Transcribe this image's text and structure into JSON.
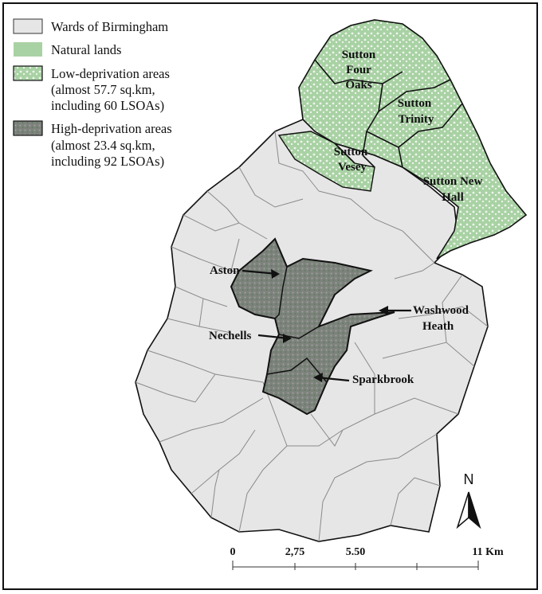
{
  "legend": {
    "wards": "Wards of Birmingham",
    "natural": "Natural lands",
    "low_line1": "Low-deprivation areas",
    "low_line2": "(almost 57.7 sq.km,",
    "low_line3": "including 60 LSOAs)",
    "high_line1": "High-deprivation areas",
    "high_line2": "(almost 23.4 sq.km,",
    "high_line3": "including 92 LSOAs)"
  },
  "labels": {
    "sutton_four_oaks_1": "Sutton",
    "sutton_four_oaks_2": "Four",
    "sutton_four_oaks_3": "Oaks",
    "sutton_trinity_1": "Sutton",
    "sutton_trinity_2": "Trinity",
    "sutton_vesey_1": "Sutton",
    "sutton_vesey_2": "Vesey",
    "sutton_new_hall_1": "Sutton New",
    "sutton_new_hall_2": "Hall",
    "aston": "Aston",
    "nechells": "Nechells",
    "washwood_1": "Washwood",
    "washwood_2": "Heath",
    "sparkbrook": "Sparkbrook"
  },
  "north_arrow": "N",
  "scale_bar": {
    "ticks": [
      "0",
      "2,75",
      "5.50",
      "11 Km"
    ]
  },
  "colors": {
    "ward_fill": "#e6e6e6",
    "ward_line": "#7a7a7a",
    "natural_green": "#a9d2a4",
    "high_dep_fill": "#7b7f7a",
    "outline": "#111111"
  }
}
